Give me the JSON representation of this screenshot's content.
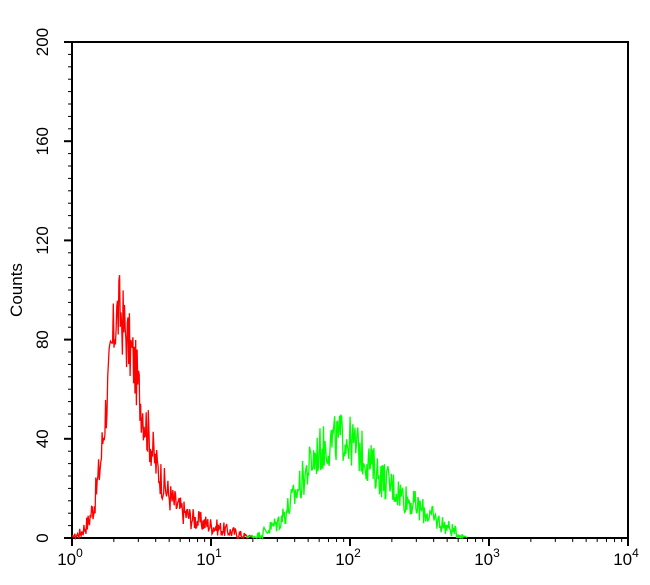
{
  "chart_data": {
    "type": "histogram",
    "title": "",
    "xlabel": "",
    "ylabel": "Counts",
    "x_scale": "log",
    "xlim": [
      1,
      10000
    ],
    "ylim": [
      0,
      200
    ],
    "grid": false,
    "y_ticks": [
      {
        "value": 0,
        "label": "0"
      },
      {
        "value": 40,
        "label": "40"
      },
      {
        "value": 80,
        "label": "80"
      },
      {
        "value": 120,
        "label": "120"
      },
      {
        "value": 160,
        "label": "160"
      },
      {
        "value": 200,
        "label": "200"
      }
    ],
    "x_ticks": [
      {
        "value": 1,
        "base": "10",
        "exp": "0"
      },
      {
        "value": 10,
        "base": "10",
        "exp": "1"
      },
      {
        "value": 100,
        "base": "10",
        "exp": "2"
      },
      {
        "value": 1000,
        "base": "10",
        "exp": "3"
      },
      {
        "value": 10000,
        "base": "10",
        "exp": "4"
      }
    ],
    "series": [
      {
        "color": "#ff0000",
        "points": [
          [
            1.0,
            0
          ],
          [
            1.15,
            2
          ],
          [
            1.3,
            6
          ],
          [
            1.45,
            14
          ],
          [
            1.6,
            30
          ],
          [
            1.75,
            52
          ],
          [
            1.9,
            72
          ],
          [
            2.05,
            88
          ],
          [
            2.2,
            92
          ],
          [
            2.35,
            86
          ],
          [
            2.5,
            80
          ],
          [
            2.7,
            74
          ],
          [
            2.9,
            66
          ],
          [
            3.1,
            56
          ],
          [
            3.4,
            46
          ],
          [
            3.7,
            38
          ],
          [
            4.0,
            30
          ],
          [
            4.4,
            24
          ],
          [
            4.8,
            19
          ],
          [
            5.3,
            15
          ],
          [
            5.9,
            12
          ],
          [
            6.5,
            10
          ],
          [
            7.2,
            8
          ],
          [
            8.0,
            7
          ],
          [
            9.0,
            6
          ],
          [
            10.0,
            5
          ],
          [
            11.5,
            4
          ],
          [
            13.0,
            3
          ],
          [
            15.0,
            2
          ],
          [
            17.0,
            1
          ],
          [
            20.0,
            0
          ]
        ]
      },
      {
        "color": "#00ff00",
        "points": [
          [
            18,
            0
          ],
          [
            22,
            1
          ],
          [
            25,
            3
          ],
          [
            30,
            6
          ],
          [
            35,
            11
          ],
          [
            40,
            17
          ],
          [
            46,
            24
          ],
          [
            52,
            30
          ],
          [
            60,
            35
          ],
          [
            70,
            38
          ],
          [
            80,
            40
          ],
          [
            90,
            41
          ],
          [
            100,
            39
          ],
          [
            115,
            36
          ],
          [
            130,
            32
          ],
          [
            150,
            28
          ],
          [
            170,
            24
          ],
          [
            200,
            21
          ],
          [
            230,
            18
          ],
          [
            270,
            15
          ],
          [
            310,
            12
          ],
          [
            360,
            10
          ],
          [
            420,
            7
          ],
          [
            480,
            5
          ],
          [
            550,
            3
          ],
          [
            620,
            1
          ],
          [
            700,
            0
          ]
        ]
      }
    ]
  }
}
